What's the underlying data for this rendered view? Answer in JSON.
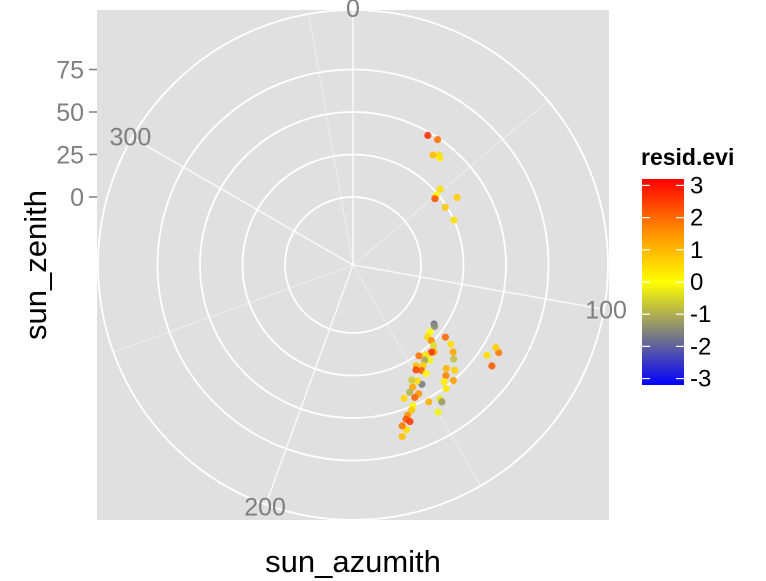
{
  "chart_data": {
    "type": "scatter",
    "coord": "polar",
    "xlabel": "sun_azumith",
    "ylabel": "sun_zenith",
    "angle_ticks": [
      0,
      100,
      200,
      300
    ],
    "angle_range": [
      0,
      360
    ],
    "radius_ticks": [
      0,
      25,
      50,
      75
    ],
    "radius_range": [
      -40,
      110
    ],
    "grid": true,
    "panel_background": "#e0e0e0",
    "grid_color": "#ffffff",
    "legend": {
      "title": "resid.evi",
      "position": "right",
      "labels": [
        "3",
        "2",
        "1",
        "0",
        "-1",
        "-2",
        "-3"
      ],
      "range": [
        -3.2,
        3.2
      ],
      "gradient_colors": [
        "#ff0000",
        "#ff8c00",
        "#ffff00",
        "#7f7f7f",
        "#0000ff"
      ]
    },
    "points": [
      {
        "x": 30,
        "y": 48,
        "c": 2.5
      },
      {
        "x": 34,
        "y": 49,
        "c": 1.6
      },
      {
        "x": 38,
        "y": 42,
        "c": 0.3
      },
      {
        "x": 39,
        "y": 41,
        "c": 0.1
      },
      {
        "x": 36,
        "y": 40,
        "c": 0.6
      },
      {
        "x": 57,
        "y": 33,
        "c": 0.4
      },
      {
        "x": 49,
        "y": 28,
        "c": 0.2
      },
      {
        "x": 58,
        "y": 24,
        "c": 0.5
      },
      {
        "x": 50,
        "y": 24,
        "c": -0.1
      },
      {
        "x": 51,
        "y": 22,
        "c": 2.1
      },
      {
        "x": 66,
        "y": 25,
        "c": 0.2
      },
      {
        "x": 126,
        "y": 19,
        "c": -1.5
      },
      {
        "x": 127,
        "y": 20,
        "c": -1.1
      },
      {
        "x": 131,
        "y": 20,
        "c": -0.2
      },
      {
        "x": 134,
        "y": 21,
        "c": 0.3
      },
      {
        "x": 134,
        "y": 24,
        "c": 1.2
      },
      {
        "x": 135,
        "y": 27,
        "c": -0.5
      },
      {
        "x": 137,
        "y": 30,
        "c": 0.8
      },
      {
        "x": 138,
        "y": 29,
        "c": 2.4
      },
      {
        "x": 141,
        "y": 28,
        "c": 0.1
      },
      {
        "x": 141,
        "y": 32,
        "c": -0.3
      },
      {
        "x": 143,
        "y": 30,
        "c": -0.9
      },
      {
        "x": 144,
        "y": 26,
        "c": 1.6
      },
      {
        "x": 145,
        "y": 32,
        "c": 0.4
      },
      {
        "x": 147,
        "y": 34,
        "c": 1.9
      },
      {
        "x": 146,
        "y": 37,
        "c": -0.1
      },
      {
        "x": 148,
        "y": 30,
        "c": 0.6
      },
      {
        "x": 150,
        "y": 41,
        "c": -1.3
      },
      {
        "x": 151,
        "y": 38,
        "c": 0.2
      },
      {
        "x": 153,
        "y": 45,
        "c": 1.1
      },
      {
        "x": 149,
        "y": 32,
        "c": 2.2
      },
      {
        "x": 153,
        "y": 36,
        "c": -0.6
      },
      {
        "x": 154,
        "y": 40,
        "c": 0.9
      },
      {
        "x": 155,
        "y": 46,
        "c": 1.8
      },
      {
        "x": 157,
        "y": 50,
        "c": -0.2
      },
      {
        "x": 159,
        "y": 44,
        "c": 0.3
      },
      {
        "x": 160,
        "y": 54,
        "c": 1.2
      },
      {
        "x": 158,
        "y": 52,
        "c": 0.5
      },
      {
        "x": 161,
        "y": 56,
        "c": 2.0
      },
      {
        "x": 156,
        "y": 42,
        "c": -0.8
      },
      {
        "x": 138,
        "y": 42,
        "c": 0.7
      },
      {
        "x": 140,
        "y": 45,
        "c": 1.4
      },
      {
        "x": 142,
        "y": 47,
        "c": 0.0
      },
      {
        "x": 147,
        "y": 54,
        "c": -0.4
      },
      {
        "x": 151,
        "y": 52,
        "c": 0.8
      },
      {
        "x": 162,
        "y": 62,
        "c": 0.2
      },
      {
        "x": 163,
        "y": 59,
        "c": 1.5
      },
      {
        "x": 164,
        "y": 65,
        "c": 0.6
      },
      {
        "x": 160,
        "y": 58,
        "c": 2.4
      },
      {
        "x": 150,
        "y": 60,
        "c": -0.3
      },
      {
        "x": 147,
        "y": 56,
        "c": -1.0
      },
      {
        "x": 143,
        "y": 51,
        "c": 0.1
      },
      {
        "x": 139,
        "y": 50,
        "c": 1.0
      },
      {
        "x": 136,
        "y": 46,
        "c": 0.4
      },
      {
        "x": 133,
        "y": 41,
        "c": -0.7
      },
      {
        "x": 131,
        "y": 38,
        "c": 0.9
      },
      {
        "x": 129,
        "y": 34,
        "c": 0.2
      },
      {
        "x": 128,
        "y": 29,
        "c": 1.7
      },
      {
        "x": 121,
        "y": 60,
        "c": 1.5
      },
      {
        "x": 120,
        "y": 57,
        "c": 0.4
      },
      {
        "x": 124,
        "y": 55,
        "c": 0.2
      },
      {
        "x": 126,
        "y": 61,
        "c": 1.9
      }
    ]
  }
}
